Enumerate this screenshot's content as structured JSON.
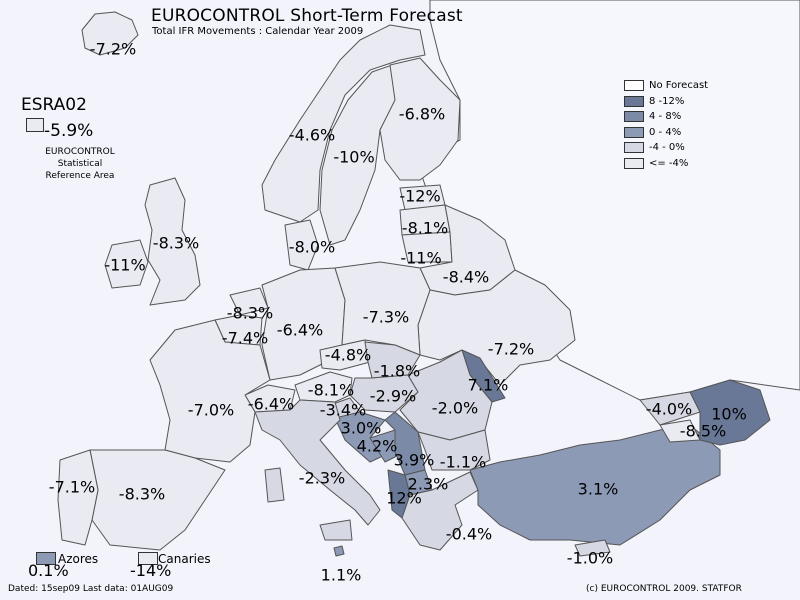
{
  "title": "EUROCONTROL Short-Term Forecast",
  "subtitle": "Total IFR Movements : Calendar Year 2009",
  "esra": {
    "title": "ESRA02",
    "value": "-5.9%",
    "description_lines": [
      "EUROCONTROL",
      "Statistical",
      "Reference Area"
    ],
    "color": "#e9eaf2"
  },
  "legend": [
    {
      "label": "No Forecast",
      "color": "#ffffff"
    },
    {
      "label": "8 -12%",
      "color": "#687896"
    },
    {
      "label": "4 - 8%",
      "color": "#7b8aa6"
    },
    {
      "label": "0 - 4%",
      "color": "#8d9ab6"
    },
    {
      "label": "-4 - 0%",
      "color": "#d6d9e3"
    },
    {
      "label": "<= -4%",
      "color": "#e9eaf2"
    }
  ],
  "insets": {
    "azores": {
      "label": "Azores",
      "value": "0.1%",
      "color": "#8d9ab6"
    },
    "canaries": {
      "label": "Canaries",
      "value": "-14%",
      "color": "#e9eaf2"
    }
  },
  "regions": [
    {
      "name": "Iceland",
      "value": "-7.2%"
    },
    {
      "name": "Norway",
      "value": "-4.6%"
    },
    {
      "name": "Sweden",
      "value": "-10%"
    },
    {
      "name": "Finland",
      "value": "-6.8%"
    },
    {
      "name": "Estonia",
      "value": "-12%"
    },
    {
      "name": "Latvia",
      "value": "-8.1%"
    },
    {
      "name": "Lithuania",
      "value": "-11%"
    },
    {
      "name": "Belarus",
      "value": "-8.4%"
    },
    {
      "name": "United Kingdom",
      "value": "-8.3%"
    },
    {
      "name": "Ireland",
      "value": "-11%"
    },
    {
      "name": "Denmark",
      "value": "-8.0%"
    },
    {
      "name": "Netherlands",
      "value": "-8.3%"
    },
    {
      "name": "Belgium/Luxembourg",
      "value": "-7.4%"
    },
    {
      "name": "Germany",
      "value": "-6.4%"
    },
    {
      "name": "Poland",
      "value": "-7.3%"
    },
    {
      "name": "Ukraine",
      "value": "-7.2%"
    },
    {
      "name": "Czech Republic",
      "value": "-4.8%"
    },
    {
      "name": "Slovakia",
      "value": "-1.8%"
    },
    {
      "name": "Hungary",
      "value": "-2.9%"
    },
    {
      "name": "Austria",
      "value": "-8.1%"
    },
    {
      "name": "Switzerland",
      "value": "-6.4%"
    },
    {
      "name": "France",
      "value": "-7.0%"
    },
    {
      "name": "Slovenia",
      "value": "-3.4%"
    },
    {
      "name": "Croatia",
      "value": "3.0%"
    },
    {
      "name": "Bosnia and Herzegovina",
      "value": "4.2%"
    },
    {
      "name": "Serbia",
      "value": "3.9%"
    },
    {
      "name": "Romania",
      "value": "-2.0%"
    },
    {
      "name": "Moldova",
      "value": "7.1%"
    },
    {
      "name": "Bulgaria",
      "value": "-1.1%"
    },
    {
      "name": "FYROM",
      "value": "2.3%"
    },
    {
      "name": "Albania",
      "value": "12%"
    },
    {
      "name": "Italy",
      "value": "-2.3%"
    },
    {
      "name": "Malta",
      "value": "1.1%"
    },
    {
      "name": "Greece",
      "value": "-0.4%"
    },
    {
      "name": "Cyprus",
      "value": "-1.0%"
    },
    {
      "name": "Turkey",
      "value": "3.1%"
    },
    {
      "name": "Georgia",
      "value": "-4.0%"
    },
    {
      "name": "Armenia",
      "value": "-8.5%"
    },
    {
      "name": "Azerbaijan",
      "value": "10%"
    },
    {
      "name": "Spain",
      "value": "-8.3%"
    },
    {
      "name": "Portugal",
      "value": "-7.1%"
    }
  ],
  "footer": {
    "dated": "Dated: 15sep09   Last data: 01AUG09",
    "copyright": "(c) EUROCONTROL 2009.  STATFOR"
  }
}
